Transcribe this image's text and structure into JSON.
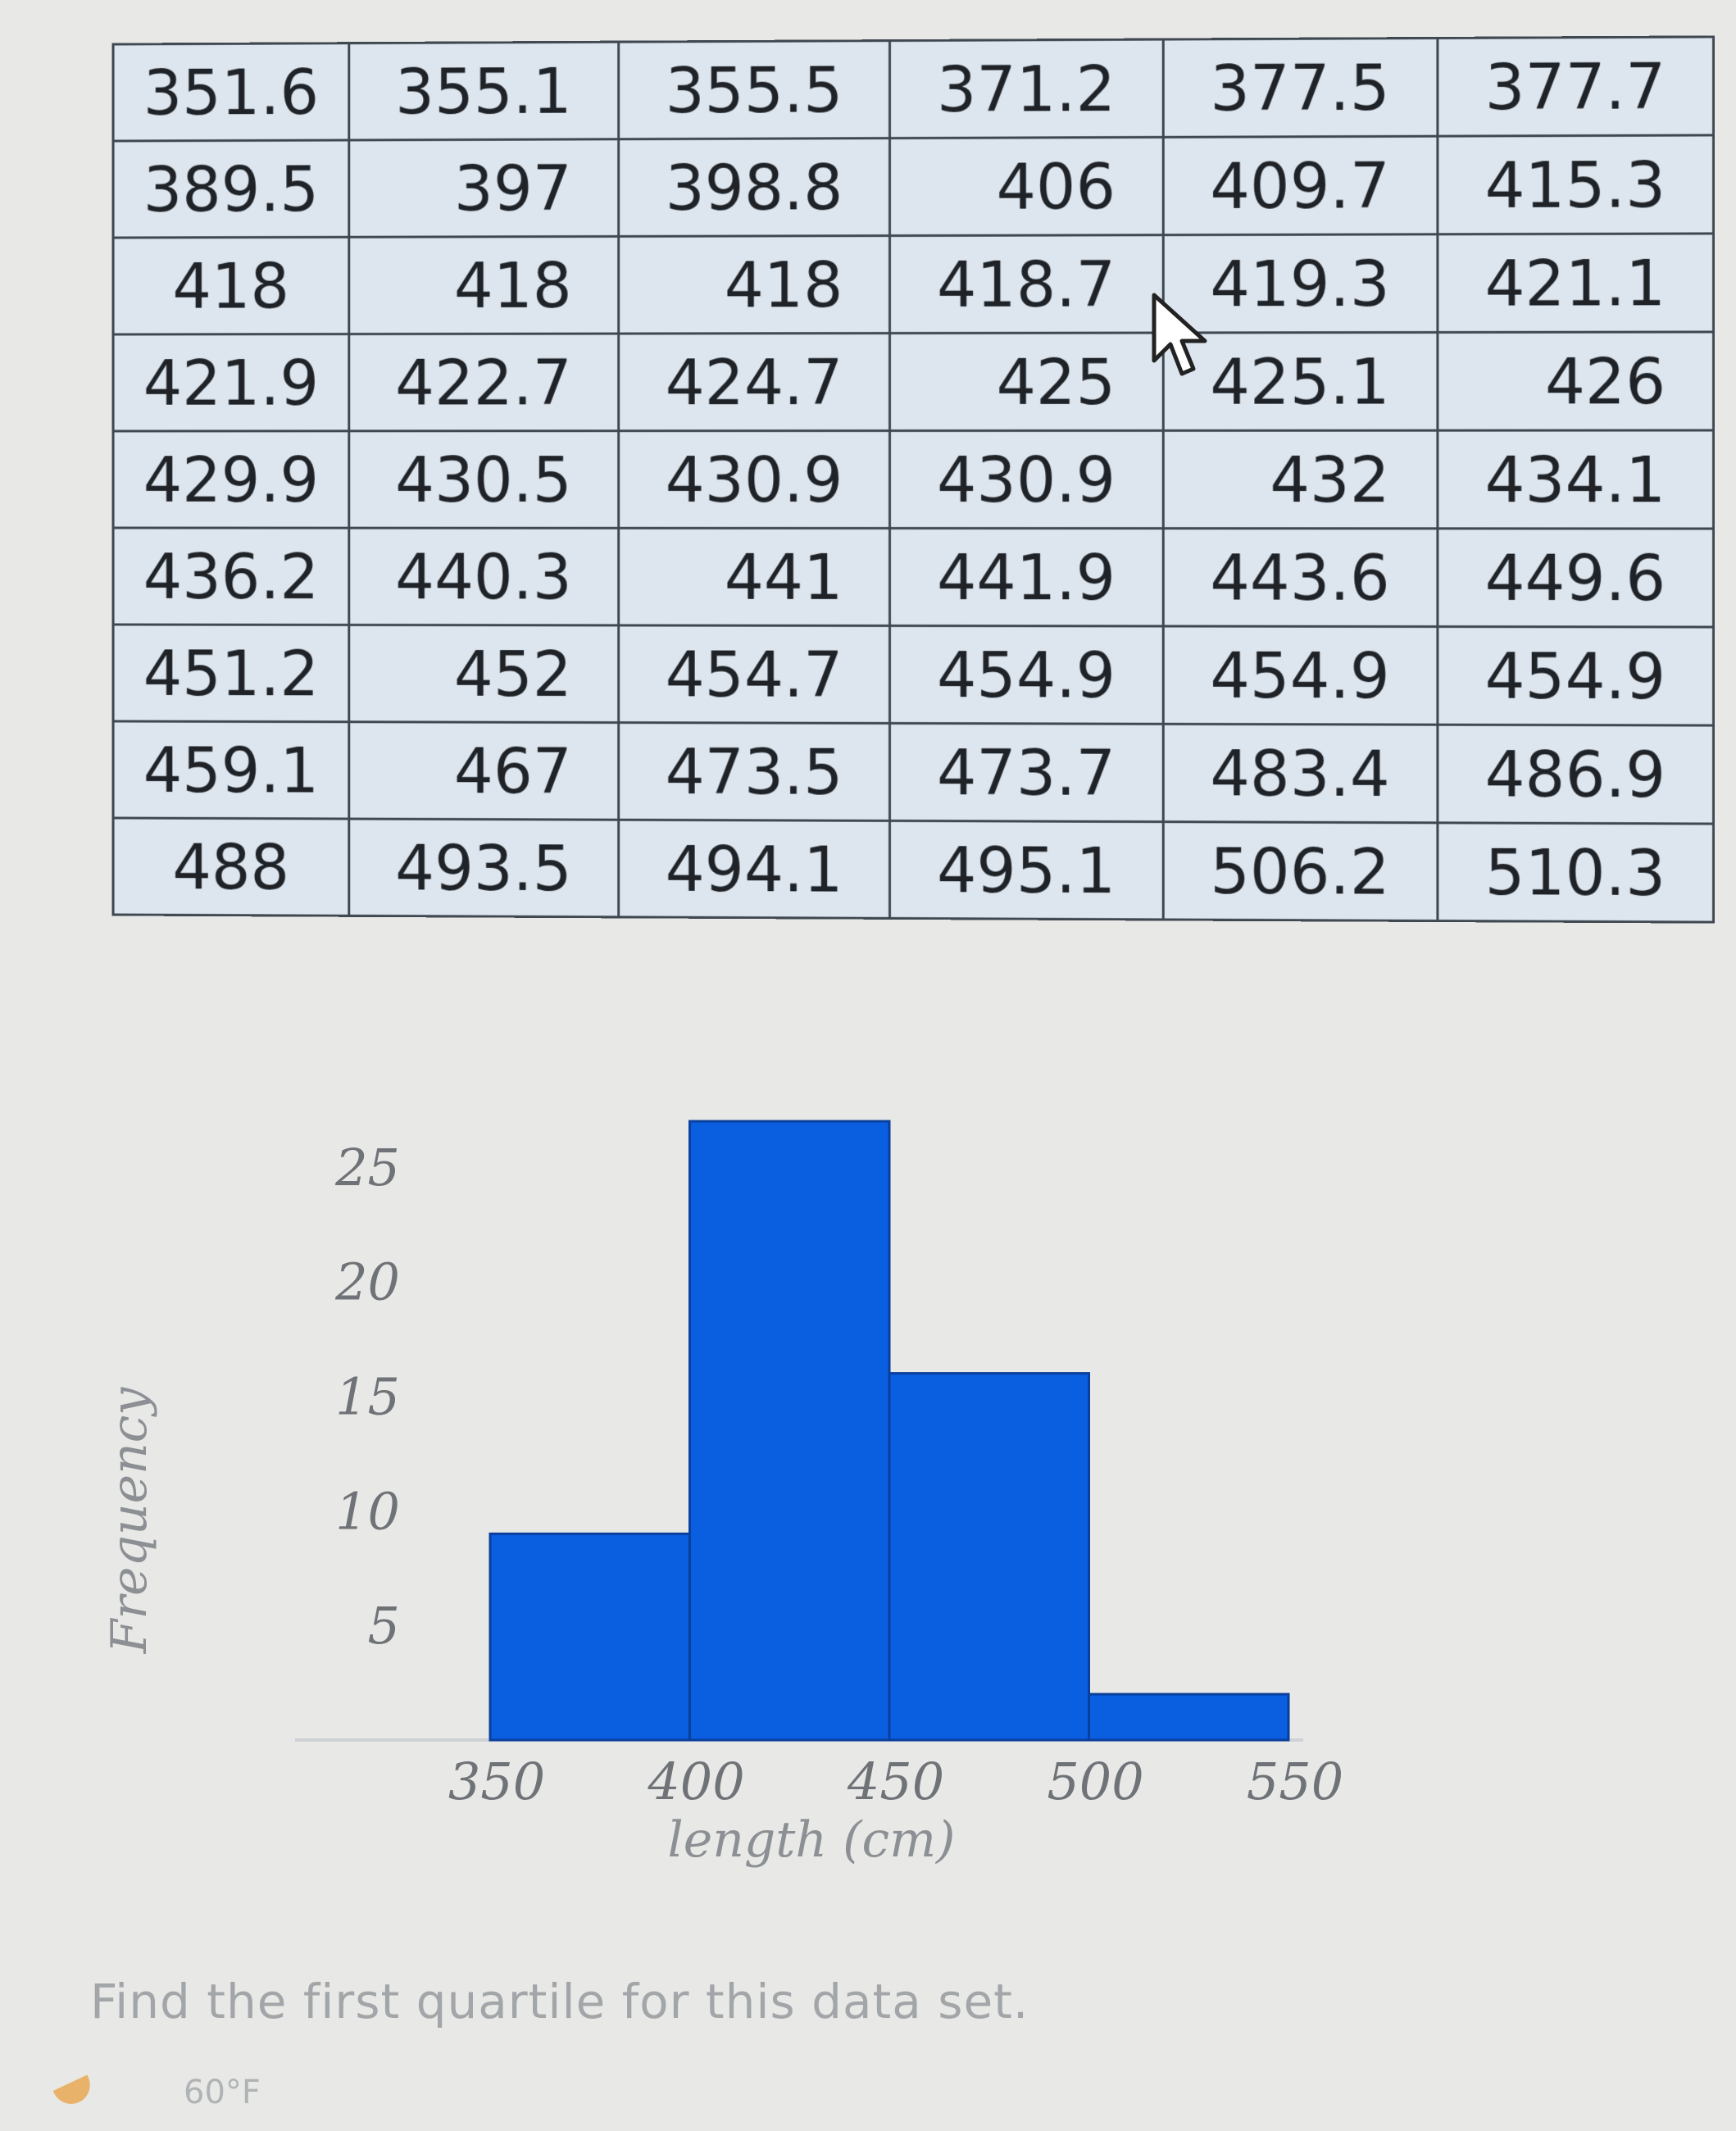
{
  "table": {
    "rows": [
      [
        "351.6",
        "355.1",
        "355.5",
        "371.2",
        "377.5",
        "377.7"
      ],
      [
        "389.5",
        "397",
        "398.8",
        "406",
        "409.7",
        "415.3"
      ],
      [
        "418",
        "418",
        "418",
        "418.7",
        "419.3",
        "421.1"
      ],
      [
        "421.9",
        "422.7",
        "424.7",
        "425",
        "425.1",
        "426"
      ],
      [
        "429.9",
        "430.5",
        "430.9",
        "430.9",
        "432",
        "434.1"
      ],
      [
        "436.2",
        "440.3",
        "441",
        "441.9",
        "443.6",
        "449.6"
      ],
      [
        "451.2",
        "452",
        "454.7",
        "454.9",
        "454.9",
        "454.9"
      ],
      [
        "459.1",
        "467",
        "473.5",
        "473.7",
        "483.4",
        "486.9"
      ],
      [
        "488",
        "493.5",
        "494.1",
        "495.1",
        "506.2",
        "510.3"
      ]
    ]
  },
  "chart_data": {
    "type": "bar",
    "title": "",
    "xlabel": "length (cm)",
    "ylabel": "Frequency",
    "bins": [
      [
        350,
        400
      ],
      [
        400,
        450
      ],
      [
        450,
        500
      ],
      [
        500,
        550
      ]
    ],
    "values": [
      9,
      27,
      16,
      2
    ],
    "xticks": [
      "350",
      "400",
      "450",
      "500",
      "550"
    ],
    "yticks": [
      "5",
      "10",
      "15",
      "20",
      "25"
    ],
    "xlim": [
      350,
      550
    ],
    "ylim": [
      0,
      27
    ],
    "grid": false,
    "bar_color": "#0a5ee0"
  },
  "question": "Find the first quartile for this data set.",
  "taskbar": {
    "temperature": "60°F",
    "weather_icon": "weather-icon"
  },
  "cursor_icon": "mouse-pointer-icon"
}
